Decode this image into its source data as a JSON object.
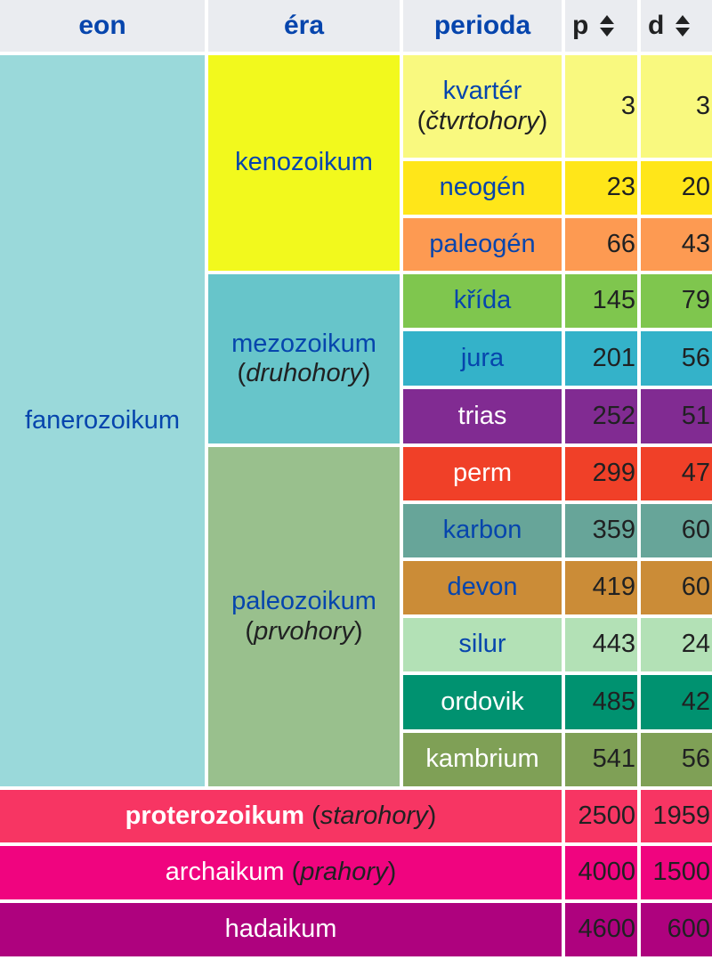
{
  "headers": {
    "eon": "eon",
    "era": "éra",
    "perioda": "perioda",
    "p": "p",
    "d": "d"
  },
  "eons": [
    {
      "name": "fanerozoikum",
      "color": "#9ad9da"
    }
  ],
  "eras": [
    {
      "name": "kenozoikum",
      "note": "",
      "color": "#f2f91d"
    },
    {
      "name": "mezozoikum",
      "note": "druhohory",
      "color": "#67c5ca"
    },
    {
      "name": "paleozoikum",
      "note": "prvohory",
      "color": "#99c08d"
    }
  ],
  "periods": [
    {
      "name": "kvartér",
      "note": "čtvrtohory",
      "p": "3",
      "d": "3",
      "color": "#f9f97f"
    },
    {
      "name": "neogén",
      "note": "",
      "p": "23",
      "d": "20",
      "color": "#ffe619"
    },
    {
      "name": "paleogén",
      "note": "",
      "p": "66",
      "d": "43",
      "color": "#fd9a52"
    },
    {
      "name": "křída",
      "note": "",
      "p": "145",
      "d": "79",
      "color": "#7fc64e"
    },
    {
      "name": "jura",
      "note": "",
      "p": "201",
      "d": "56",
      "color": "#34b2c9"
    },
    {
      "name": "trias",
      "note": "",
      "p": "252",
      "d": "51",
      "color": "#812b92"
    },
    {
      "name": "perm",
      "note": "",
      "p": "299",
      "d": "47",
      "color": "#f04028"
    },
    {
      "name": "karbon",
      "note": "",
      "p": "359",
      "d": "60",
      "color": "#67a599"
    },
    {
      "name": "devon",
      "note": "",
      "p": "419",
      "d": "60",
      "color": "#cb8c37"
    },
    {
      "name": "silur",
      "note": "",
      "p": "443",
      "d": "24",
      "color": "#b3e1b6"
    },
    {
      "name": "ordovik",
      "note": "",
      "p": "485",
      "d": "42",
      "color": "#009270"
    },
    {
      "name": "kambrium",
      "note": "",
      "p": "541",
      "d": "56",
      "color": "#7fa056"
    }
  ],
  "precambrian": [
    {
      "name": "proterozoikum",
      "note": "starohory",
      "p": "2500",
      "d": "1959",
      "color": "#f73563"
    },
    {
      "name": "archaikum",
      "note": "prahory",
      "p": "4000",
      "d": "1500",
      "color": "#f0047f"
    },
    {
      "name": "hadaikum",
      "note": "",
      "p": "4600",
      "d": "600",
      "color": "#ae027e"
    }
  ]
}
